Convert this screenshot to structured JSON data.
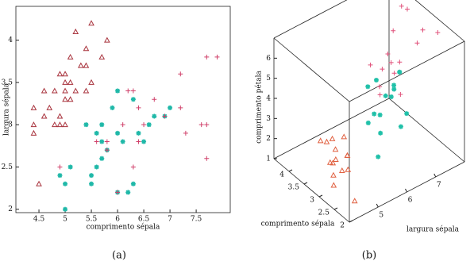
{
  "chart_data": [
    {
      "type": "scatter",
      "xlabel": "comprimento sépala",
      "ylabel": "largura sépala",
      "caption": "(a)",
      "xlim": [
        4.06,
        8.15
      ],
      "ylim": [
        1.96,
        4.4
      ],
      "xticks": [
        4.5,
        5,
        5.5,
        6,
        6.5,
        7,
        7.5
      ],
      "yticks": [
        2,
        2.5,
        3,
        3.5,
        4
      ],
      "series": [
        {
          "marker": "triangle",
          "color": "#a8323c",
          "x": [
            4.4,
            4.4,
            4.4,
            4.5,
            4.6,
            4.6,
            4.7,
            4.8,
            4.8,
            4.9,
            4.9,
            5.0,
            5.0,
            5.0,
            5.0,
            5.0,
            5.1,
            5.1,
            5.1,
            5.2,
            5.2,
            5.4,
            5.4,
            5.4,
            5.5,
            5.5,
            5.7,
            5.8,
            4.9,
            5.3
          ],
          "values": [
            2.9,
            3.0,
            3.2,
            2.3,
            3.1,
            3.4,
            3.2,
            3.0,
            3.4,
            3.0,
            3.1,
            3.0,
            3.3,
            3.4,
            3.5,
            3.6,
            3.5,
            3.8,
            3.3,
            3.4,
            4.1,
            3.9,
            3.4,
            3.7,
            3.5,
            4.2,
            3.8,
            4.0,
            3.6,
            3.7
          ]
        },
        {
          "marker": "star",
          "color": "#1fb8a8",
          "x": [
            4.9,
            5.0,
            5.0,
            5.1,
            5.5,
            5.5,
            5.6,
            5.6,
            5.7,
            5.7,
            5.8,
            6.0,
            6.0,
            6.1,
            6.2,
            6.3,
            6.4,
            6.5,
            6.6,
            6.7,
            6.9,
            7.0,
            5.9,
            6.0,
            5.4,
            5.7,
            6.3
          ],
          "values": [
            2.4,
            2.0,
            2.3,
            2.5,
            2.3,
            2.4,
            2.5,
            2.9,
            2.6,
            2.8,
            2.7,
            2.2,
            2.9,
            2.8,
            2.2,
            2.3,
            2.9,
            2.8,
            3.0,
            3.1,
            3.1,
            3.2,
            3.2,
            3.4,
            3.0,
            3.0,
            3.3
          ]
        },
        {
          "marker": "plus",
          "color": "#d0406a",
          "x": [
            4.9,
            5.6,
            5.8,
            6.0,
            6.1,
            6.3,
            6.4,
            6.5,
            6.7,
            6.9,
            7.2,
            7.2,
            7.7,
            7.9,
            7.7,
            7.7,
            7.6,
            7.3,
            6.2,
            6.3,
            5.8,
            6.4
          ],
          "values": [
            2.5,
            2.8,
            2.7,
            2.2,
            3.0,
            2.5,
            2.8,
            3.0,
            3.3,
            3.1,
            3.6,
            3.2,
            3.8,
            3.8,
            2.6,
            3.0,
            3.0,
            2.9,
            3.4,
            3.4,
            2.8,
            3.2
          ]
        }
      ]
    },
    {
      "type": "scatter3d",
      "xlabel": "largura sépala",
      "ylabel": "comprimento sépala",
      "zlabel": "comprimento pétala",
      "caption": "(b)",
      "xlim": [
        4,
        8
      ],
      "ylim": [
        2,
        4.5
      ],
      "zlim": [
        1,
        7
      ],
      "xticks": [
        5,
        6,
        7
      ],
      "yticks": [
        2,
        2.5,
        3,
        3.5,
        4
      ],
      "zticks": [
        1,
        2,
        3,
        4,
        5,
        6
      ],
      "series": [
        {
          "marker": "triangle",
          "color": "#e06040",
          "x": [
            4.4,
            4.6,
            4.8,
            5.0,
            5.0,
            5.1,
            5.1,
            5.2,
            5.4,
            5.4,
            5.5,
            5.7,
            4.9,
            4.5,
            5.3
          ],
          "y": [
            2.9,
            3.1,
            3.4,
            3.0,
            3.5,
            3.5,
            3.8,
            4.1,
            3.9,
            3.4,
            3.5,
            3.8,
            3.1,
            2.3,
            3.7
          ],
          "values": [
            1.4,
            1.5,
            1.6,
            1.6,
            1.3,
            1.4,
            1.9,
            1.5,
            1.7,
            1.5,
            1.3,
            1.7,
            1.5,
            1.3,
            1.5
          ]
        },
        {
          "marker": "star",
          "color": "#1fc0a8",
          "x": [
            5.0,
            5.5,
            5.6,
            5.7,
            5.8,
            6.0,
            6.1,
            6.2,
            6.4,
            6.6,
            6.7,
            6.9,
            7.0,
            5.9,
            6.3
          ],
          "y": [
            2.0,
            2.4,
            2.9,
            2.8,
            2.7,
            2.2,
            2.8,
            2.2,
            2.9,
            3.0,
            3.1,
            3.1,
            3.2,
            3.2,
            3.3
          ],
          "values": [
            3.5,
            3.8,
            3.6,
            4.1,
            4.1,
            4.0,
            4.7,
            4.5,
            4.3,
            4.4,
            4.4,
            4.9,
            4.7,
            4.8,
            4.7
          ]
        },
        {
          "marker": "plus",
          "color": "#e0507a",
          "x": [
            5.8,
            6.1,
            6.3,
            6.4,
            6.5,
            6.7,
            6.9,
            7.2,
            7.7,
            7.9,
            7.7,
            7.6,
            7.3,
            6.2,
            6.4
          ],
          "y": [
            2.7,
            3.0,
            2.5,
            2.8,
            3.0,
            3.3,
            3.1,
            3.6,
            3.8,
            3.8,
            2.6,
            3.0,
            2.9,
            3.4,
            3.2
          ],
          "values": [
            5.1,
            4.9,
            5.0,
            5.6,
            5.8,
            5.7,
            5.4,
            6.1,
            6.7,
            6.4,
            6.9,
            6.6,
            6.3,
            5.4,
            5.3
          ]
        }
      ]
    }
  ]
}
